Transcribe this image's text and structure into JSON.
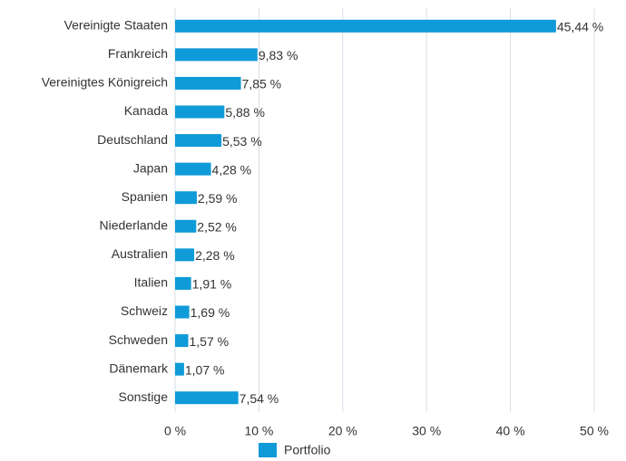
{
  "chart_data": {
    "type": "bar",
    "orientation": "horizontal",
    "categories": [
      "Vereinigte Staaten",
      "Frankreich",
      "Vereinigtes Königreich",
      "Kanada",
      "Deutschland",
      "Japan",
      "Spanien",
      "Niederlande",
      "Australien",
      "Italien",
      "Schweiz",
      "Schweden",
      "Dänemark",
      "Sonstige"
    ],
    "series": [
      {
        "name": "Portfolio",
        "color": "#0f9ad8",
        "values": [
          45.44,
          9.83,
          7.85,
          5.88,
          5.53,
          4.28,
          2.59,
          2.52,
          2.28,
          1.91,
          1.69,
          1.57,
          1.07,
          7.54
        ],
        "value_labels": [
          "45,44 %",
          "9,83 %",
          "7,85 %",
          "5,88 %",
          "5,53 %",
          "4,28 %",
          "2,59 %",
          "2,52 %",
          "2,28 %",
          "1,91 %",
          "1,69 %",
          "1,57 %",
          "1,07 %",
          "7,54 %"
        ]
      }
    ],
    "xlim": [
      0,
      50
    ],
    "xticks": [
      {
        "value": 0,
        "label": "0 %"
      },
      {
        "value": 10,
        "label": "10 %"
      },
      {
        "value": 20,
        "label": "20 %"
      },
      {
        "value": 30,
        "label": "30 %"
      },
      {
        "value": 40,
        "label": "40 %"
      },
      {
        "value": 50,
        "label": "50 %"
      }
    ],
    "grid": true,
    "legend": "bottom"
  }
}
